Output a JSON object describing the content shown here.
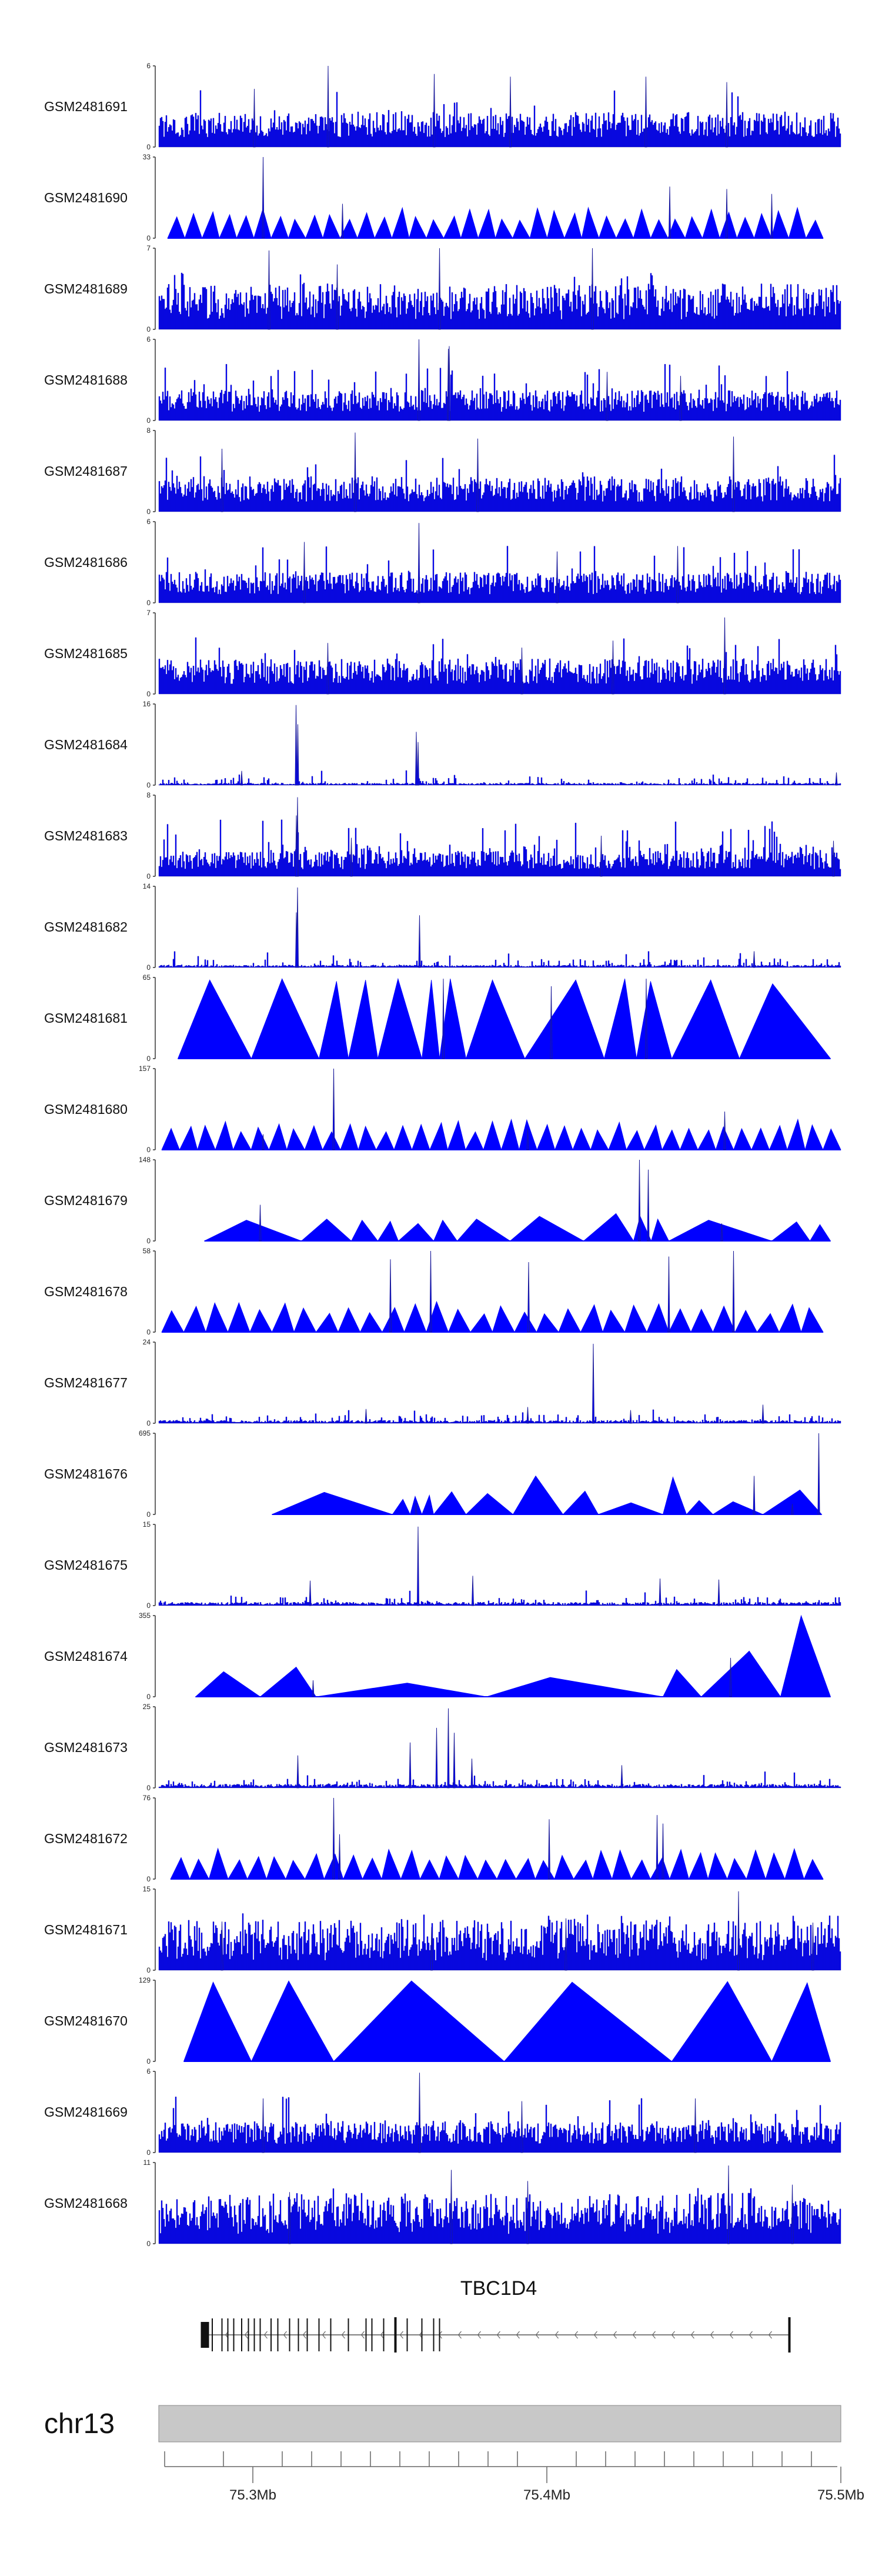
{
  "chart_data": {
    "type": "area",
    "chromosome": "chr13",
    "gene": {
      "name": "TBC1D4",
      "start_mb": 75.2847,
      "end_mb": 75.4825,
      "strand": "-",
      "exon_mb": [
        75.2847,
        75.2862,
        75.2895,
        75.2915,
        75.2935,
        75.2962,
        75.2985,
        75.3005,
        75.3025,
        75.3062,
        75.3085,
        75.3125,
        75.3155,
        75.3185,
        75.3225,
        75.3265,
        75.3325,
        75.3385,
        75.3405,
        75.3445,
        75.3485,
        75.3525,
        75.3575,
        75.3615,
        75.3635,
        75.4825
      ]
    },
    "x_axis": {
      "range_mb": [
        75.268,
        75.5
      ],
      "ticks_mb": [
        75.3,
        75.4,
        75.5
      ],
      "tick_labels": [
        "75.3Mb",
        "75.4Mb",
        "75.5Mb"
      ],
      "minor_ticks_mb": [
        75.27,
        75.29,
        75.31,
        75.32,
        75.33,
        75.34,
        75.35,
        75.36,
        75.37,
        75.38,
        75.39,
        75.41,
        75.42,
        75.43,
        75.44,
        75.45,
        75.46,
        75.47,
        75.48,
        75.49
      ]
    },
    "tracks": [
      {
        "name": "GSM2481691",
        "ymax": 6,
        "ymax_label": "6",
        "style": "dense",
        "seed": 101,
        "base": 0.35,
        "peaks": [
          [
            75.3256,
            6.0
          ],
          [
            75.3617,
            5.4
          ],
          [
            75.3876,
            5.2
          ],
          [
            75.4337,
            5.2
          ],
          [
            75.3005,
            4.3
          ],
          [
            75.4612,
            4.8
          ]
        ]
      },
      {
        "name": "GSM2481690",
        "ymax": 33,
        "ymax_label": "33",
        "style": "triangles",
        "seed": 102,
        "base": 0.25,
        "count": 38,
        "start_mb": 75.271,
        "end_mb": 75.494,
        "peaks": [
          [
            75.3035,
            33
          ],
          [
            75.4418,
            21
          ],
          [
            75.4612,
            20
          ],
          [
            75.4765,
            18
          ],
          [
            75.3305,
            14
          ]
        ]
      },
      {
        "name": "GSM2481689",
        "ymax": 7,
        "ymax_label": "7",
        "style": "dense",
        "seed": 103,
        "base": 0.45,
        "peaks": [
          [
            75.3055,
            6.8
          ],
          [
            75.3635,
            7.0
          ],
          [
            75.4155,
            7.0
          ],
          [
            75.3287,
            5.6
          ]
        ]
      },
      {
        "name": "GSM2481688",
        "ymax": 6,
        "ymax_label": "6",
        "style": "dense",
        "seed": 104,
        "base": 0.3,
        "peaks": [
          [
            75.3565,
            6.0
          ],
          [
            75.3665,
            5.3
          ],
          [
            75.3668,
            5.5
          ],
          [
            75.4205,
            3.6
          ],
          [
            75.4455,
            3.3
          ]
        ]
      },
      {
        "name": "GSM2481687",
        "ymax": 8,
        "ymax_label": "8",
        "style": "dense",
        "seed": 105,
        "base": 0.35,
        "peaks": [
          [
            75.3348,
            7.8
          ],
          [
            75.3765,
            7.2
          ],
          [
            75.4635,
            7.4
          ],
          [
            75.2895,
            6.2
          ]
        ]
      },
      {
        "name": "GSM2481686",
        "ymax": 6,
        "ymax_label": "6",
        "style": "dense",
        "seed": 106,
        "base": 0.3,
        "peaks": [
          [
            75.3565,
            5.9
          ],
          [
            75.3175,
            4.5
          ],
          [
            75.4035,
            3.8
          ],
          [
            75.4445,
            4.2
          ]
        ]
      },
      {
        "name": "GSM2481685",
        "ymax": 7,
        "ymax_label": "7",
        "style": "dense",
        "seed": 107,
        "base": 0.35,
        "peaks": [
          [
            75.4605,
            6.6
          ],
          [
            75.3255,
            4.4
          ],
          [
            75.3915,
            4.0
          ],
          [
            75.4225,
            4.6
          ]
        ]
      },
      {
        "name": "GSM2481684",
        "ymax": 16,
        "ymax_label": "16",
        "style": "sparse",
        "seed": 108,
        "base": 0.25,
        "peaks": [
          [
            75.3147,
            15.8
          ],
          [
            75.3153,
            12.0
          ],
          [
            75.3556,
            10.5
          ],
          [
            75.3562,
            8.5
          ],
          [
            75.2962,
            2.8
          ],
          [
            75.4985,
            2.5
          ]
        ]
      },
      {
        "name": "GSM2481683",
        "ymax": 8,
        "ymax_label": "8",
        "style": "dense",
        "seed": 109,
        "base": 0.25,
        "peaks": [
          [
            75.3152,
            7.8
          ],
          [
            75.3148,
            6.0
          ],
          [
            75.3335,
            3.8
          ],
          [
            75.4185,
            4.0
          ],
          [
            75.4975,
            3.5
          ]
        ]
      },
      {
        "name": "GSM2481682",
        "ymax": 14,
        "ymax_label": "14",
        "style": "sparse",
        "seed": 110,
        "base": 0.3,
        "peaks": [
          [
            75.3152,
            13.8
          ],
          [
            75.3148,
            9.5
          ],
          [
            75.3567,
            9.0
          ],
          [
            75.4705,
            2.8
          ]
        ]
      },
      {
        "name": "GSM2481681",
        "ymax": 65,
        "ymax_label": "65",
        "style": "triangles",
        "seed": 111,
        "base": 0.0,
        "breaks_mb": [
          75.2745,
          75.2995,
          75.3225,
          75.3325,
          75.3425,
          75.3575,
          75.3635,
          75.3725,
          75.3925,
          75.4195,
          75.4305,
          75.4425,
          75.4655,
          75.4965
        ],
        "heights": [
          63,
          64,
          62,
          63,
          64,
          63,
          64,
          63,
          63,
          64,
          62,
          63,
          60
        ],
        "peaks": [
          [
            75.3648,
            64
          ],
          [
            75.4338,
            64
          ],
          [
            75.4015,
            58
          ]
        ]
      },
      {
        "name": "GSM2481680",
        "ymax": 157,
        "ymax_label": "157",
        "style": "triangles",
        "seed": 112,
        "base": 0.0,
        "count": 38,
        "start_mb": 75.269,
        "end_mb": 75.5,
        "peaks": [
          [
            75.3275,
            157
          ],
          [
            75.4605,
            74
          ],
          [
            75.3935,
            40
          ],
          [
            75.3035,
            30
          ]
        ]
      },
      {
        "name": "GSM2481679",
        "ymax": 148,
        "ymax_label": "148",
        "style": "triangles",
        "seed": 113,
        "base": 0.0,
        "breaks_mb": [
          75.2835,
          75.3165,
          75.3335,
          75.3425,
          75.3495,
          75.3615,
          75.3695,
          75.3875,
          75.4125,
          75.4295,
          75.4355,
          75.4415,
          75.4765,
          75.4895,
          75.4965
        ],
        "heights": [
          38,
          40,
          38,
          36,
          32,
          38,
          40,
          45,
          50,
          45,
          40,
          38,
          35,
          30
        ],
        "peaks": [
          [
            75.4315,
            148
          ],
          [
            75.4345,
            130
          ],
          [
            75.3025,
            66
          ],
          [
            75.4595,
            32
          ]
        ]
      },
      {
        "name": "GSM2481678",
        "ymax": 58,
        "ymax_label": "58",
        "style": "triangles",
        "seed": 114,
        "base": 0.0,
        "count": 30,
        "start_mb": 75.269,
        "end_mb": 75.494,
        "peaks": [
          [
            75.3605,
            58
          ],
          [
            75.4635,
            58
          ],
          [
            75.4415,
            54
          ],
          [
            75.3938,
            50
          ],
          [
            75.3468,
            52
          ]
        ]
      },
      {
        "name": "GSM2481677",
        "ymax": 24,
        "ymax_label": "24",
        "style": "sparse",
        "seed": 115,
        "base": 0.35,
        "peaks": [
          [
            75.4158,
            23.5
          ],
          [
            75.4735,
            5.5
          ],
          [
            75.3935,
            4.8
          ],
          [
            75.3385,
            4.2
          ],
          [
            75.4285,
            3.9
          ]
        ]
      },
      {
        "name": "GSM2481676",
        "ymax": 695,
        "ymax_label": "695",
        "style": "triangles",
        "seed": 116,
        "base": 0.0,
        "breaks_mb": [
          75.3065,
          75.3475,
          75.3535,
          75.3575,
          75.3615,
          75.3725,
          75.3885,
          75.4055,
          75.4175,
          75.4395,
          75.4475,
          75.4565,
          75.4735,
          75.4935
        ],
        "heights": [
          190,
          130,
          155,
          165,
          195,
          180,
          330,
          200,
          100,
          320,
          120,
          110,
          210
        ],
        "peaks": [
          [
            75.4925,
            695
          ],
          [
            75.4705,
            330
          ],
          [
            75.3555,
            100
          ],
          [
            75.4835,
            90
          ]
        ]
      },
      {
        "name": "GSM2481675",
        "ymax": 15,
        "ymax_label": "15",
        "style": "sparse",
        "seed": 117,
        "base": 0.4,
        "peaks": [
          [
            75.3562,
            14.6
          ],
          [
            75.3748,
            5.5
          ],
          [
            75.4385,
            5.0
          ],
          [
            75.3195,
            4.6
          ],
          [
            75.4585,
            4.8
          ]
        ]
      },
      {
        "name": "GSM2481674",
        "ymax": 355,
        "ymax_label": "355",
        "style": "triangles",
        "seed": 118,
        "base": 0.0,
        "breaks_mb": [
          75.2805,
          75.3025,
          75.3215,
          75.3795,
          75.4395,
          75.4525,
          75.4795,
          75.4965
        ],
        "heights": [
          110,
          130,
          60,
          85,
          120,
          200,
          355
        ],
        "peaks": [
          [
            75.3205,
            72
          ],
          [
            75.4625,
            170
          ]
        ]
      },
      {
        "name": "GSM2481673",
        "ymax": 25,
        "ymax_label": "25",
        "style": "sparse",
        "seed": 119,
        "base": 0.45,
        "peaks": [
          [
            75.3665,
            24.5
          ],
          [
            75.3625,
            18.5
          ],
          [
            75.3685,
            17.0
          ],
          [
            75.3535,
            14.0
          ],
          [
            75.3153,
            10.0
          ],
          [
            75.3745,
            9.0
          ],
          [
            75.4255,
            7.0
          ]
        ]
      },
      {
        "name": "GSM2481672",
        "ymax": 76,
        "ymax_label": "76",
        "style": "triangles",
        "seed": 120,
        "base": 0.0,
        "count": 34,
        "start_mb": 75.272,
        "end_mb": 75.494,
        "peaks": [
          [
            75.3275,
            76
          ],
          [
            75.4375,
            60
          ],
          [
            75.4395,
            52
          ],
          [
            75.4008,
            56
          ],
          [
            75.3295,
            42
          ]
        ]
      },
      {
        "name": "GSM2481671",
        "ymax": 15,
        "ymax_label": "15",
        "style": "dense",
        "seed": 121,
        "base": 0.5,
        "peaks": [
          [
            75.4652,
            14.6
          ],
          [
            75.4065,
            9.6
          ],
          [
            75.3608,
            8.0
          ],
          [
            75.2895,
            9.0
          ],
          [
            75.4905,
            8.8
          ]
        ]
      },
      {
        "name": "GSM2481670",
        "ymax": 129,
        "ymax_label": "129",
        "style": "triangles",
        "seed": 122,
        "base": 0.0,
        "breaks_mb": [
          75.2765,
          75.2995,
          75.3275,
          75.3855,
          75.4425,
          75.4765,
          75.4965
        ],
        "heights": [
          126,
          128,
          128,
          126,
          127,
          125
        ],
        "peaks": []
      },
      {
        "name": "GSM2481669",
        "ymax": 6,
        "ymax_label": "6",
        "style": "dense",
        "seed": 123,
        "base": 0.3,
        "peaks": [
          [
            75.3567,
            5.9
          ],
          [
            75.3035,
            4.0
          ],
          [
            75.3915,
            3.8
          ],
          [
            75.4505,
            4.0
          ]
        ]
      },
      {
        "name": "GSM2481668",
        "ymax": 11,
        "ymax_label": "11",
        "style": "dense",
        "seed": 124,
        "base": 0.5,
        "peaks": [
          [
            75.4618,
            10.6
          ],
          [
            75.3675,
            10.0
          ],
          [
            75.3935,
            8.5
          ],
          [
            75.4835,
            8.0
          ],
          [
            75.3125,
            7.0
          ]
        ]
      }
    ],
    "ymin_label": "0",
    "colors": {
      "fill": "#0000ff",
      "line": "#1a1a9a",
      "axis": "#333333",
      "ideogram": "#c8c8c8",
      "ideogram_stroke": "#888888",
      "gene": "#111111"
    }
  }
}
